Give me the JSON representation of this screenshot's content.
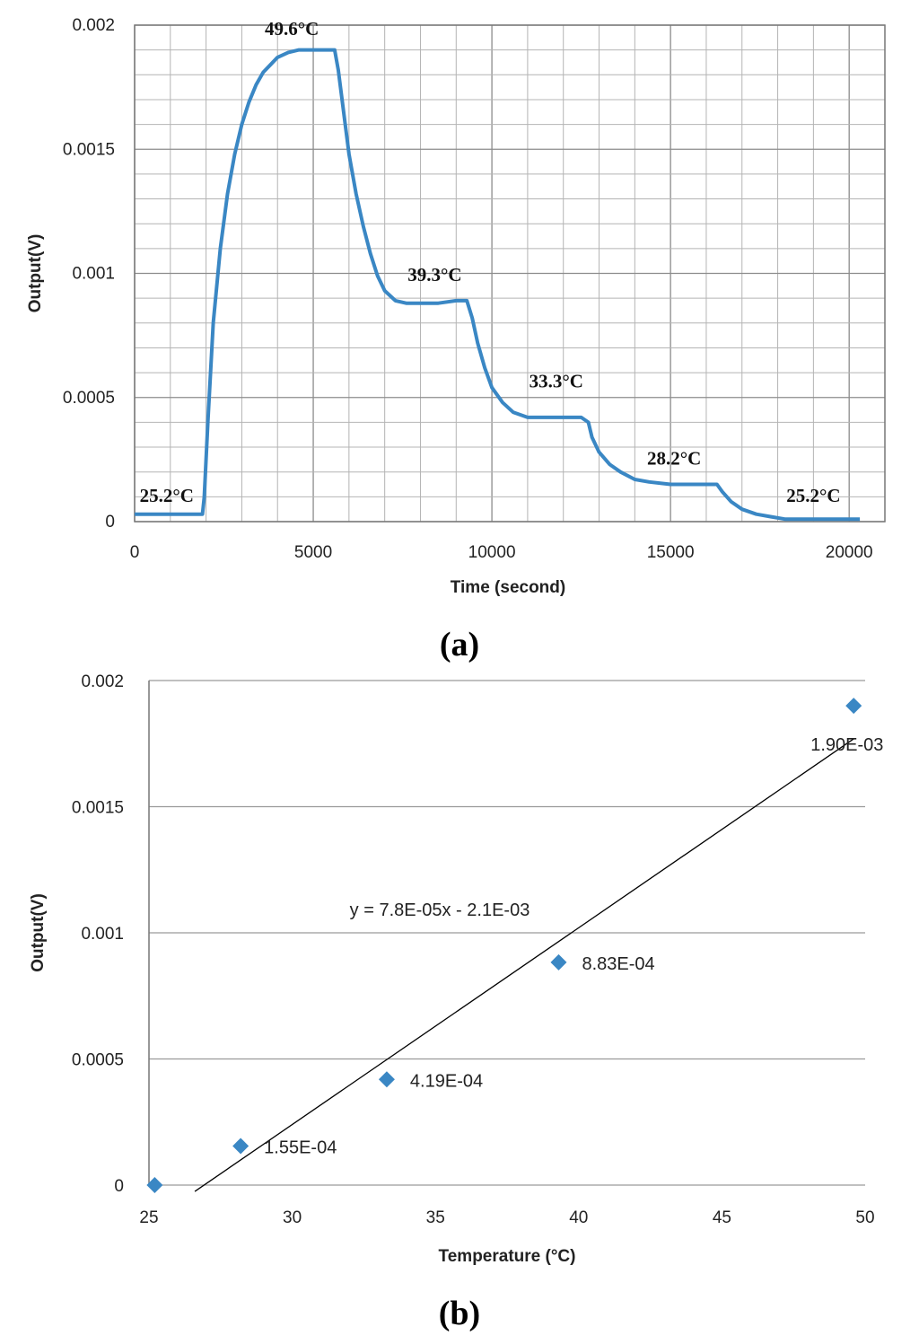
{
  "colors": {
    "series": "#3a87c4",
    "grid": "#9a9a9a",
    "axis": "#777777",
    "fit_line": "#000000"
  },
  "chart_data": [
    {
      "type": "line",
      "panel_label": "(a)",
      "xlabel": "Time (second)",
      "ylabel": "Output(V)",
      "xlim": [
        0,
        21000
      ],
      "ylim": [
        0,
        0.002
      ],
      "grid": true,
      "x_ticks": [
        "0",
        "5000",
        "10000",
        "15000",
        "20000"
      ],
      "y_ticks": [
        "0",
        "0.0005",
        "0.001",
        "0.0015",
        "0.002"
      ],
      "series": [
        {
          "x": [
            0,
            500,
            1000,
            1500,
            1900,
            1950,
            2050,
            2200,
            2400,
            2600,
            2800,
            3000,
            3200,
            3400,
            3600,
            3800,
            4000,
            4300,
            4600,
            5000,
            5400,
            5600,
            5700,
            5850,
            6000,
            6200,
            6400,
            6600,
            6800,
            7000,
            7300,
            7600,
            8000,
            8500,
            9000,
            9300,
            9450,
            9600,
            9800,
            10000,
            10300,
            10600,
            11000,
            11500,
            12000,
            12500,
            12700,
            12800,
            13000,
            13300,
            13600,
            14000,
            14400,
            15000,
            15500,
            16000,
            16300,
            16450,
            16700,
            17000,
            17400,
            17800,
            18200,
            19000,
            19500,
            20000,
            20300
          ],
          "y": [
            3e-05,
            3e-05,
            3e-05,
            3e-05,
            3e-05,
            0.0001,
            0.0004,
            0.0008,
            0.0011,
            0.00132,
            0.00148,
            0.0016,
            0.00169,
            0.00176,
            0.00181,
            0.00184,
            0.00187,
            0.00189,
            0.0019,
            0.0019,
            0.0019,
            0.0019,
            0.00182,
            0.00165,
            0.00148,
            0.00132,
            0.00119,
            0.00108,
            0.00099,
            0.00093,
            0.00089,
            0.00088,
            0.00088,
            0.00088,
            0.00089,
            0.00089,
            0.00082,
            0.00072,
            0.00062,
            0.00054,
            0.00048,
            0.00044,
            0.00042,
            0.00042,
            0.00042,
            0.00042,
            0.0004,
            0.00034,
            0.00028,
            0.00023,
            0.0002,
            0.00017,
            0.00016,
            0.00015,
            0.00015,
            0.00015,
            0.00015,
            0.00012,
            8e-05,
            5e-05,
            3e-05,
            2e-05,
            1e-05,
            1e-05,
            1e-05,
            1e-05,
            1e-05
          ]
        }
      ],
      "annotations": [
        {
          "text": "49.6°C",
          "x": 4400,
          "y": 0.00196
        },
        {
          "text": "39.3°C",
          "x": 8400,
          "y": 0.00097
        },
        {
          "text": "33.3°C",
          "x": 11800,
          "y": 0.00054
        },
        {
          "text": "28.2°C",
          "x": 15100,
          "y": 0.00023
        },
        {
          "text": "25.2°C",
          "x": 900,
          "y": 8e-05
        },
        {
          "text": "25.2°C",
          "x": 19000,
          "y": 8e-05
        }
      ]
    },
    {
      "type": "scatter",
      "panel_label": "(b)",
      "xlabel": "Temperature (°C)",
      "ylabel": "Output(V)",
      "xlim": [
        25,
        50
      ],
      "ylim": [
        0,
        0.002
      ],
      "grid": true,
      "x_ticks": [
        "25",
        "30",
        "35",
        "40",
        "45",
        "50"
      ],
      "y_ticks": [
        "0",
        "0.0005",
        "0.001",
        "0.0015",
        "0.002"
      ],
      "series": [
        {
          "x": [
            25.2,
            28.2,
            33.3,
            39.3,
            49.6
          ],
          "y": [
            0,
            0.000155,
            0.000419,
            0.000883,
            0.0019
          ],
          "labels": [
            "",
            "1.55E-04",
            "4.19E-04",
            "8.83E-04",
            "1.90E-03"
          ]
        }
      ],
      "trendline": {
        "equation": "y = 7.8E-05x - 2.1E-03",
        "slope": 7.8e-05,
        "intercept": -0.0021,
        "x_range": [
          26.6,
          49.6
        ]
      }
    }
  ]
}
